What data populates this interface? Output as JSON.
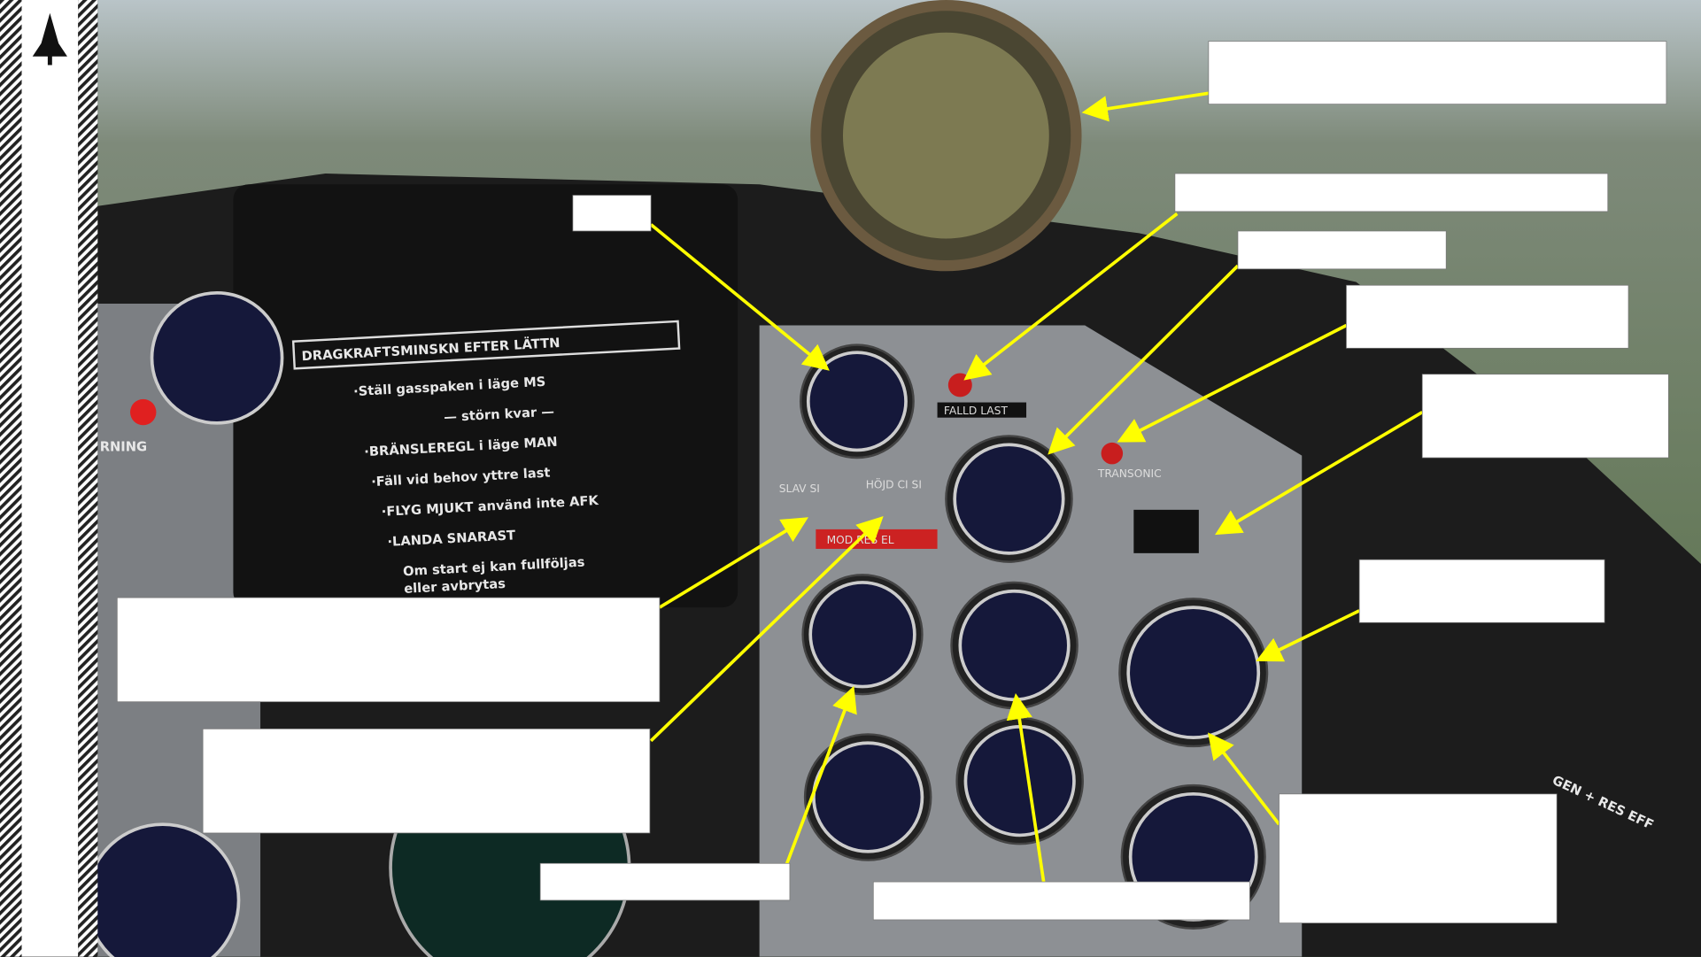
{
  "placard": {
    "title": "DRAGKRAFTSMINSKN EFTER LÄTTN",
    "lines": [
      "·Ställ gasspaken i läge MS",
      "— störn kvar —",
      "·BRÄNSLEREGL i läge MAN",
      "·Fäll vid behov yttre last",
      "·FLYG MJUKT använd inte AFK",
      "·LANDA SNARAST",
      "Om start ej kan fullföljas",
      "eller avbrytas"
    ]
  },
  "panel_labels": {
    "falld_last": "FALLD LAST",
    "transonic": "TRANSONIC",
    "mod_res_el": "MOD RES EL",
    "slav_si": "SLAV SI",
    "hojd_ci_si": "HÖJD CI SI",
    "warning": "RNING",
    "gen_res_eff": "GEN + RES EFF"
  }
}
